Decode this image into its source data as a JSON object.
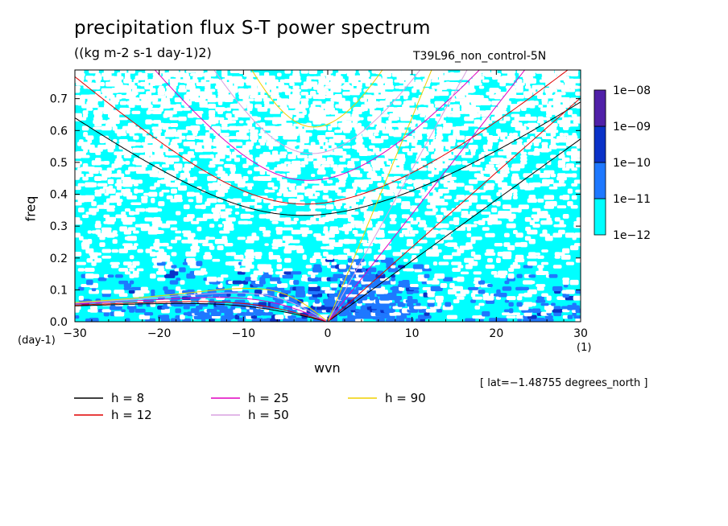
{
  "chart_data": {
    "type": "heatmap",
    "title": "precipitation flux S-T power spectrum",
    "units": "((kg m-2 s-1 day-1)2)",
    "run_name": "T39L96_non_control-5N",
    "xlabel": "wvn",
    "ylabel": "freq",
    "x_unit": "(1)",
    "y_unit": "(day-1)",
    "xlim": [
      -30,
      30
    ],
    "ylim": [
      0,
      0.79
    ],
    "x_ticks": [
      -30,
      -20,
      -10,
      0,
      10,
      20,
      30
    ],
    "x_tick_labels": [
      "−30",
      "−20",
      "−10",
      "0",
      "10",
      "20",
      "30"
    ],
    "y_ticks": [
      0,
      0.1,
      0.2,
      0.3,
      0.4,
      0.5,
      0.6,
      0.7
    ],
    "y_tick_labels": [
      "0.0",
      "0.1",
      "0.2",
      "0.3",
      "0.4",
      "0.5",
      "0.6",
      "0.7"
    ],
    "lat_note": "[ lat=−1.48755 degrees_north ]",
    "colorbar": {
      "levels": [
        "1e−12",
        "1e−11",
        "1e−10",
        "1e−09",
        "1e−08"
      ],
      "colors": [
        "#00ffff",
        "#1e78ff",
        "#0a32c8",
        "#0000a0",
        "#5020a8"
      ]
    },
    "dispersion_curves": [
      {
        "label": "h =  8",
        "color": "#000000",
        "h": 8
      },
      {
        "label": "h = 12",
        "color": "#e00000",
        "h": 12
      },
      {
        "label": "h = 25",
        "color": "#e000c0",
        "h": 25
      },
      {
        "label": "h = 50",
        "color": "#d8a0e0",
        "h": 50
      },
      {
        "label": "h = 90",
        "color": "#f0d000",
        "h": 90
      }
    ],
    "background_color": "#00ffff"
  }
}
